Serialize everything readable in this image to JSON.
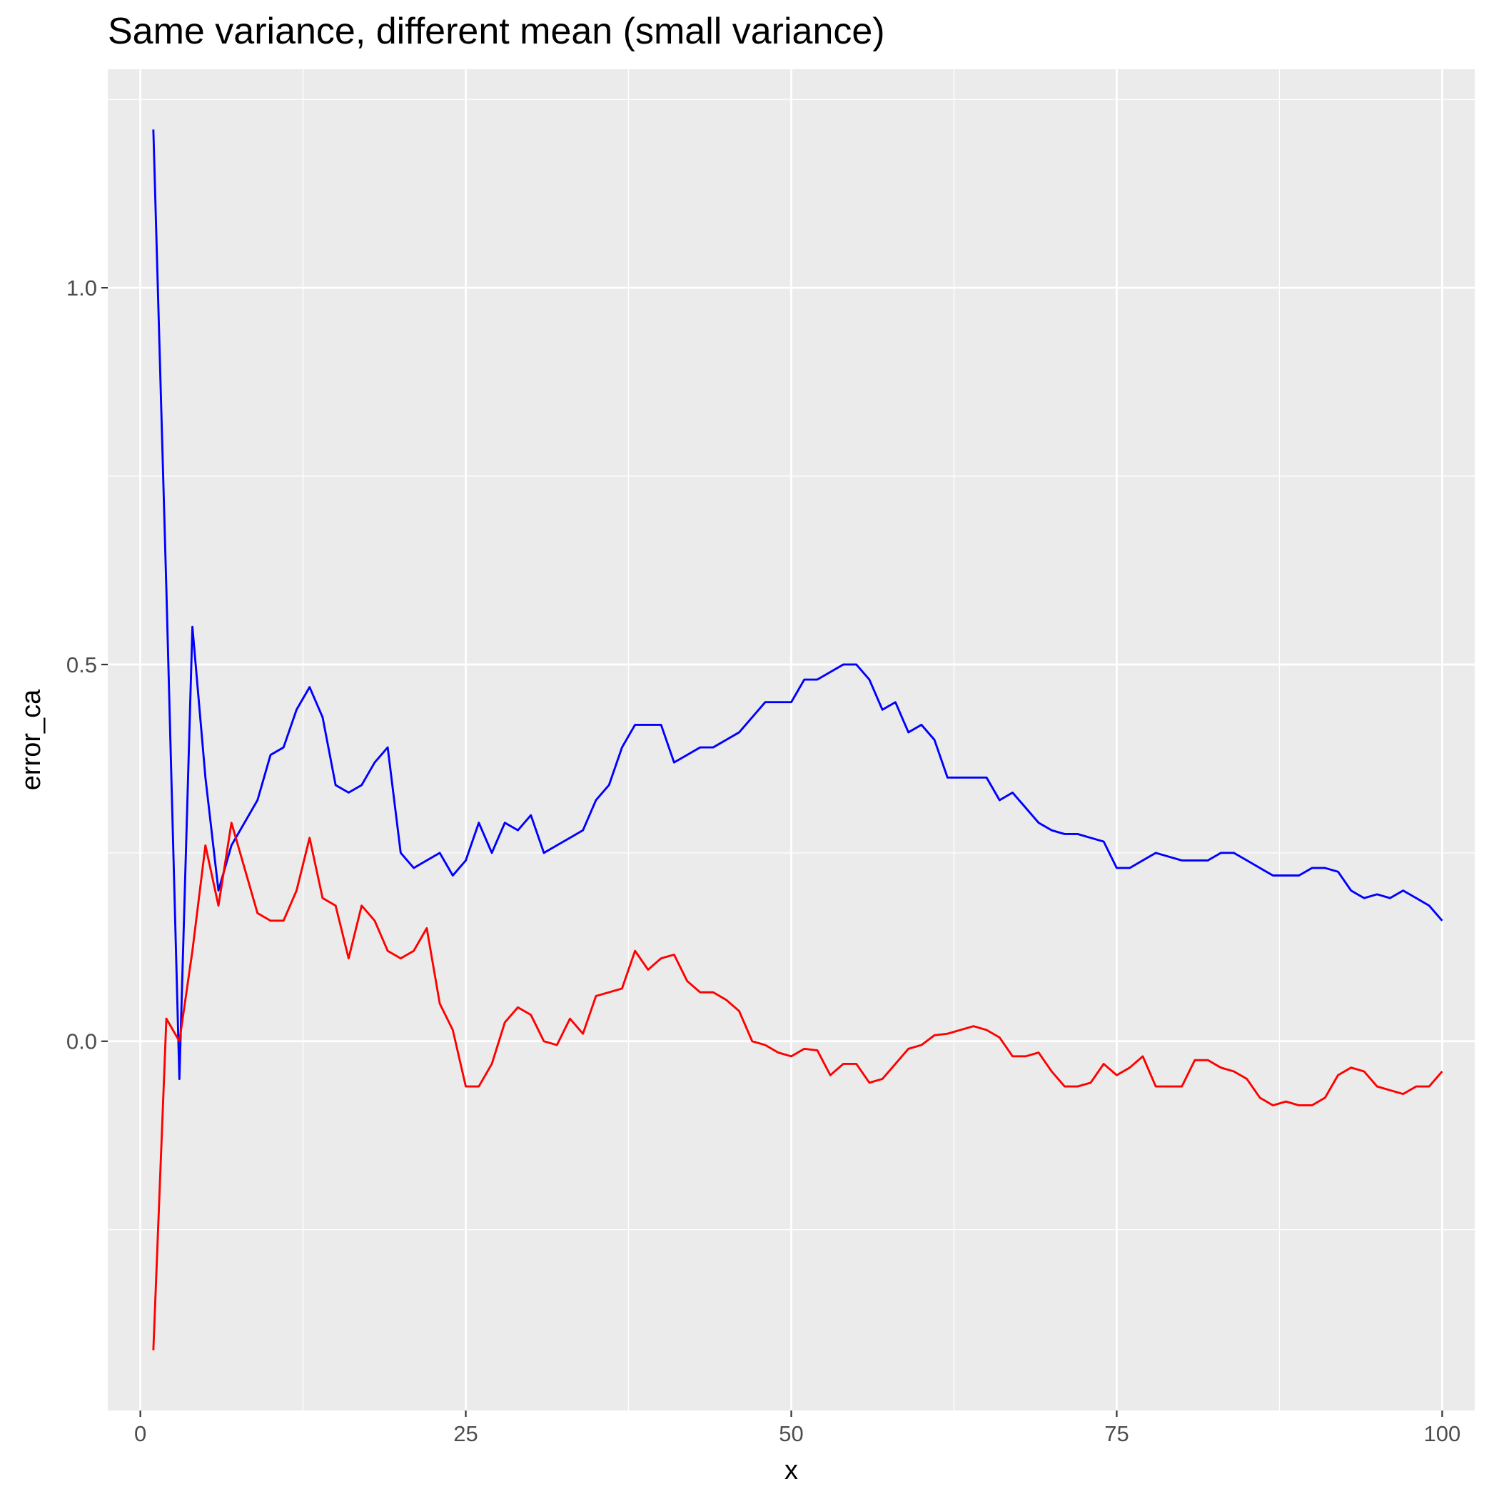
{
  "chart_data": {
    "type": "line",
    "title": "Same variance, different mean (small variance)",
    "xlabel": "x",
    "ylabel": "error_ca",
    "xlim": [
      -2.5,
      102.5
    ],
    "ylim": [
      -0.49,
      1.29
    ],
    "x_ticks": [
      0,
      25,
      50,
      75,
      100
    ],
    "x_tick_labels": [
      "0",
      "25",
      "50",
      "75",
      "100"
    ],
    "y_ticks": [
      0.0,
      0.5,
      1.0
    ],
    "y_tick_labels": [
      "0.0",
      "0.5",
      "1.0"
    ],
    "grid": true,
    "colors": {
      "panel": "#ebebeb",
      "grid": "#ffffff",
      "blue": "#0000ff",
      "red": "#ff0000"
    },
    "x": [
      1,
      2,
      3,
      4,
      5,
      6,
      7,
      8,
      9,
      10,
      11,
      12,
      13,
      14,
      15,
      16,
      17,
      18,
      19,
      20,
      21,
      22,
      23,
      24,
      25,
      26,
      27,
      28,
      29,
      30,
      31,
      32,
      33,
      34,
      35,
      36,
      37,
      38,
      39,
      40,
      41,
      42,
      43,
      44,
      45,
      46,
      47,
      48,
      49,
      50,
      51,
      52,
      53,
      54,
      55,
      56,
      57,
      58,
      59,
      60,
      61,
      62,
      63,
      64,
      65,
      66,
      67,
      68,
      69,
      70,
      71,
      72,
      73,
      74,
      75,
      76,
      77,
      78,
      79,
      80,
      81,
      82,
      83,
      84,
      85,
      86,
      87,
      88,
      89,
      90,
      91,
      92,
      93,
      94,
      95,
      96,
      97,
      98,
      99,
      100
    ],
    "series": [
      {
        "color": "#0000ff",
        "values": [
          1.21,
          0.6,
          -0.05,
          0.55,
          0.35,
          0.2,
          0.26,
          0.29,
          0.32,
          0.38,
          0.39,
          0.44,
          0.47,
          0.43,
          0.34,
          0.33,
          0.34,
          0.37,
          0.39,
          0.25,
          0.23,
          0.24,
          0.25,
          0.22,
          0.24,
          0.29,
          0.25,
          0.29,
          0.28,
          0.3,
          0.25,
          0.26,
          0.27,
          0.28,
          0.32,
          0.34,
          0.39,
          0.42,
          0.42,
          0.42,
          0.37,
          0.38,
          0.39,
          0.39,
          0.4,
          0.41,
          0.43,
          0.45,
          0.45,
          0.45,
          0.48,
          0.48,
          0.49,
          0.5,
          0.5,
          0.48,
          0.44,
          0.45,
          0.41,
          0.42,
          0.4,
          0.35,
          0.35,
          0.35,
          0.35,
          0.32,
          0.33,
          0.31,
          0.29,
          0.28,
          0.275,
          0.275,
          0.27,
          0.265,
          0.23,
          0.23,
          0.24,
          0.25,
          0.245,
          0.24,
          0.24,
          0.24,
          0.25,
          0.25,
          0.24,
          0.23,
          0.22,
          0.22,
          0.22,
          0.23,
          0.23,
          0.225,
          0.2,
          0.19,
          0.195,
          0.19,
          0.2,
          0.19,
          0.18,
          0.16
        ]
      },
      {
        "color": "#ff0000",
        "values": [
          -0.41,
          0.03,
          0.0,
          0.12,
          0.26,
          0.18,
          0.29,
          0.23,
          0.17,
          0.16,
          0.16,
          0.2,
          0.27,
          0.19,
          0.18,
          0.11,
          0.18,
          0.16,
          0.12,
          0.11,
          0.12,
          0.15,
          0.05,
          0.015,
          -0.06,
          -0.06,
          -0.03,
          0.025,
          0.045,
          0.035,
          0.0,
          -0.005,
          0.03,
          0.01,
          0.06,
          0.065,
          0.07,
          0.12,
          0.095,
          0.11,
          0.115,
          0.08,
          0.065,
          0.065,
          0.055,
          0.04,
          0.0,
          -0.005,
          -0.015,
          -0.02,
          -0.01,
          -0.012,
          -0.045,
          -0.03,
          -0.03,
          -0.055,
          -0.05,
          -0.03,
          -0.01,
          -0.005,
          0.008,
          0.01,
          0.015,
          0.02,
          0.015,
          0.005,
          -0.02,
          -0.02,
          -0.015,
          -0.04,
          -0.06,
          -0.06,
          -0.055,
          -0.03,
          -0.045,
          -0.035,
          -0.02,
          -0.06,
          -0.06,
          -0.06,
          -0.025,
          -0.025,
          -0.035,
          -0.04,
          -0.05,
          -0.075,
          -0.085,
          -0.08,
          -0.085,
          -0.085,
          -0.075,
          -0.045,
          -0.035,
          -0.04,
          -0.06,
          -0.065,
          -0.07,
          -0.06,
          -0.06,
          -0.04
        ]
      }
    ]
  }
}
